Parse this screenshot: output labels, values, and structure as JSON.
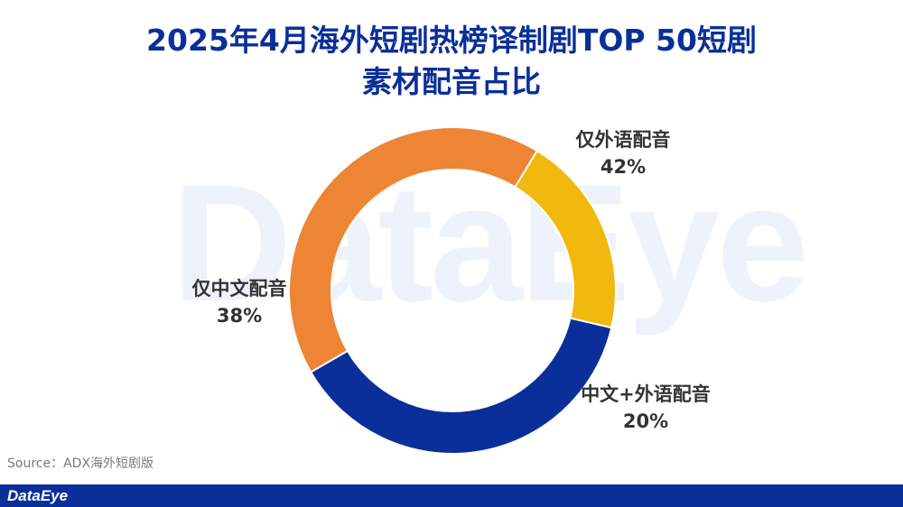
{
  "header": {
    "title_line1": "2025年4月海外短剧热榜译制剧TOP 50短剧",
    "title_line2": "素材配音占比"
  },
  "watermark": "DataEye",
  "chart_data": {
    "type": "pie",
    "title": "2025年4月海外短剧热榜译制剧TOP 50短剧素材配音占比",
    "series": [
      {
        "name": "仅外语配音",
        "value": 42,
        "label": "42%",
        "color": "#ed8534"
      },
      {
        "name": "中文+外语配音",
        "value": 20,
        "label": "20%",
        "color": "#f1b90e"
      },
      {
        "name": "仅中文配音",
        "value": 38,
        "label": "38%",
        "color": "#0a2f9a"
      }
    ]
  },
  "source": "Source：ADX海外短剧版",
  "footer": {
    "brand": "DataEye"
  }
}
